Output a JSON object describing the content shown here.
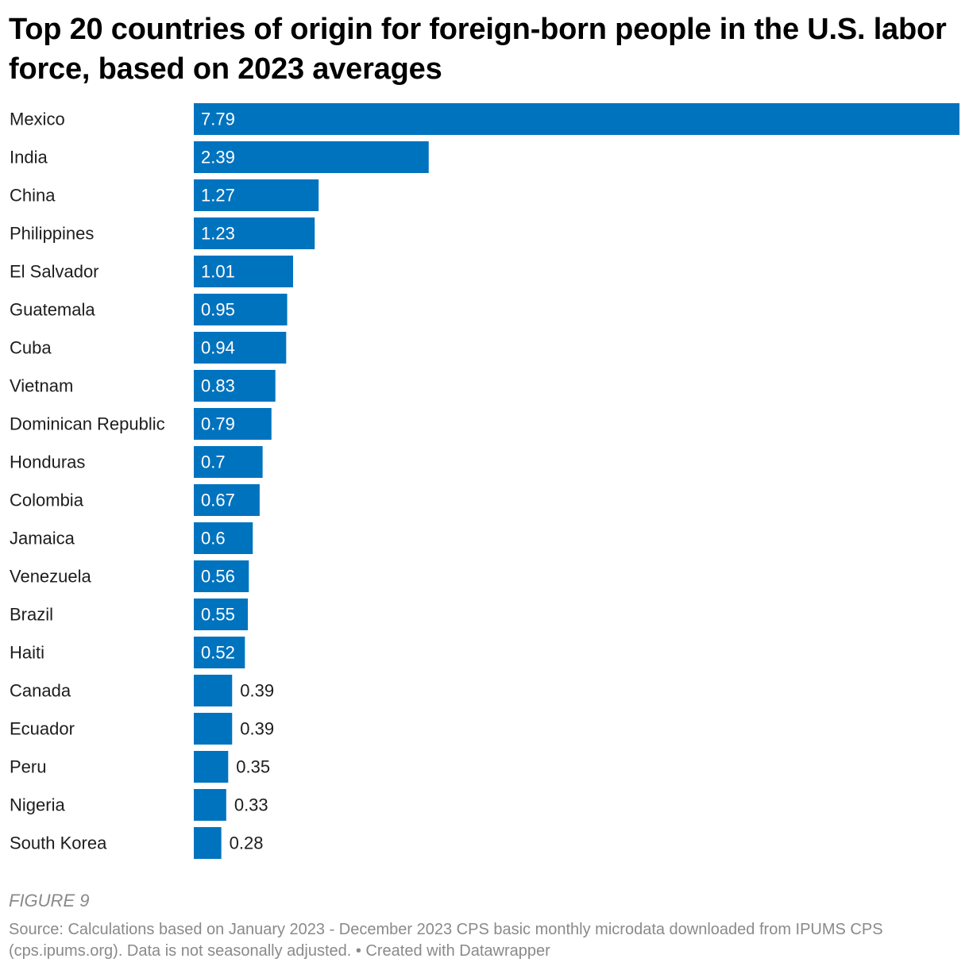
{
  "chart_data": {
    "type": "bar",
    "orientation": "horizontal",
    "title": "Top 20 countries of origin for foreign-born people in the U.S. labor force, based on 2023 averages",
    "categories": [
      "Mexico",
      "India",
      "China",
      "Philippines",
      "El Salvador",
      "Guatemala",
      "Cuba",
      "Vietnam",
      "Dominican Republic",
      "Honduras",
      "Colombia",
      "Jamaica",
      "Venezuela",
      "Brazil",
      "Haiti",
      "Canada",
      "Ecuador",
      "Peru",
      "Nigeria",
      "South Korea"
    ],
    "values": [
      7.79,
      2.39,
      1.27,
      1.23,
      1.01,
      0.95,
      0.94,
      0.83,
      0.79,
      0.7,
      0.67,
      0.6,
      0.56,
      0.55,
      0.52,
      0.39,
      0.39,
      0.35,
      0.33,
      0.28
    ],
    "value_labels": [
      "7.79",
      "2.39",
      "1.27",
      "1.23",
      "1.01",
      "0.95",
      "0.94",
      "0.83",
      "0.79",
      "0.7",
      "0.67",
      "0.6",
      "0.56",
      "0.55",
      "0.52",
      "0.39",
      "0.39",
      "0.35",
      "0.33",
      "0.28"
    ],
    "xlim": [
      0,
      7.79
    ],
    "grid": false,
    "bar_color": "#0073bf"
  },
  "figure_note": "FIGURE 9",
  "source": "Source: Calculations based on January 2023 - December 2023 CPS basic monthly microdata downloaded from IPUMS CPS (cps.ipums.org). Data is not seasonally adjusted. • Created with Datawrapper"
}
